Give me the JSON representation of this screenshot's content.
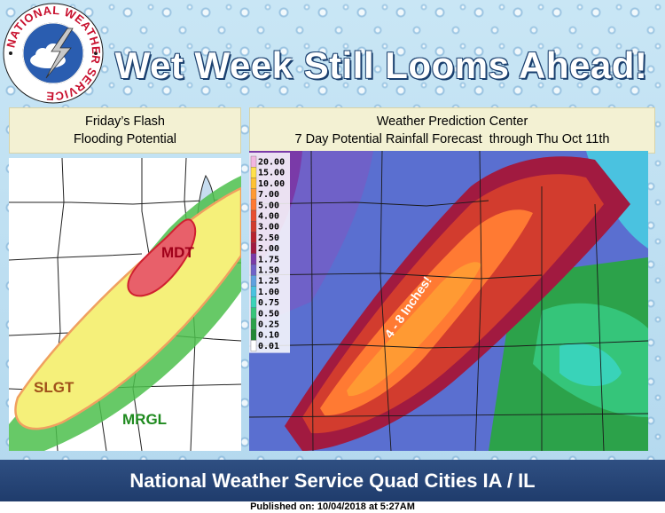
{
  "header": {
    "title": "Wet Week Still Looms Ahead!"
  },
  "logo": {
    "ring_text": "NATIONAL WEATHER SERVICE",
    "icon": "nws-logo"
  },
  "left_panel": {
    "title_line1": "Friday’s Flash",
    "title_line2": "Flooding Potential",
    "labels": {
      "moderate": "MDT",
      "slight": "SLGT",
      "marginal": "MRGL"
    },
    "colors": {
      "marginal": "#4cbf4c",
      "slight": "#f5f07a",
      "slight_border": "#f0a060",
      "moderate": "#e8606a",
      "moderate_border": "#d02030"
    }
  },
  "right_panel": {
    "title_line1": "Weather Prediction Center",
    "title_line2": "7 Day Potential Rainfall Forecast  through Thu Oct 11th",
    "annotation": "4 - 8 Inches!",
    "legend": [
      "20.00",
      "15.00",
      "10.00",
      "7.00",
      "5.00",
      "4.00",
      "3.00",
      "2.50",
      "2.00",
      "1.75",
      "1.50",
      "1.25",
      "1.00",
      "0.75",
      "0.50",
      "0.25",
      "0.10",
      "0.01"
    ],
    "legend_colors": [
      "#f2b6e0",
      "#ffe14d",
      "#ffc233",
      "#ff9a33",
      "#ff7a33",
      "#e84e30",
      "#d23c2e",
      "#b8222e",
      "#a11a40",
      "#7a3aa8",
      "#6f61c8",
      "#5fa0df",
      "#4ac2e0",
      "#39d3b9",
      "#35c57a",
      "#2ca24a",
      "#228834",
      "#ffffff"
    ]
  },
  "footer": {
    "text": "National Weather Service Quad Cities IA / IL"
  },
  "published": {
    "text": "Published on: 10/04/2018 at 5:27AM"
  }
}
